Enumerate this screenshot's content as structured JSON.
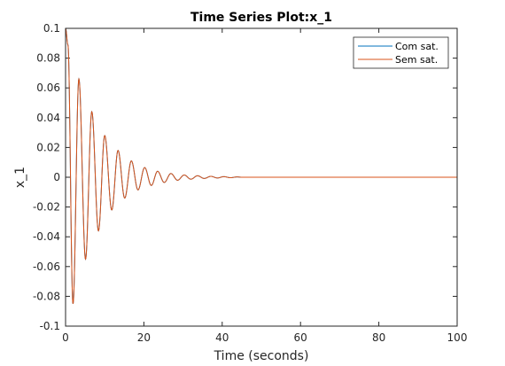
{
  "chart_data": {
    "type": "line",
    "title": "Time Series Plot:x_1",
    "xlabel": "Time (seconds)",
    "ylabel": "x_1",
    "xlim": [
      0,
      100
    ],
    "ylim": [
      -0.1,
      0.1
    ],
    "xticks": [
      0,
      20,
      40,
      60,
      80,
      100
    ],
    "yticks": [
      -0.1,
      -0.08,
      -0.06,
      -0.04,
      -0.02,
      0,
      0.02,
      0.04,
      0.06,
      0.08,
      0.1
    ],
    "grid": false,
    "legend_position": "top-right",
    "series": [
      {
        "name": "Com sat.",
        "color": "#0072BD",
        "signal": {
          "form": "damped-oscillation",
          "initial_value": 0.1,
          "peak_times": [
            0.6,
            3.4,
            6.7,
            10.0,
            13.4,
            16.8,
            20.2,
            23.5,
            26.9,
            30.3,
            33.7,
            37.1,
            40.4,
            43.8
          ],
          "peak_values": [
            0.089,
            0.066,
            0.044,
            0.028,
            0.018,
            0.011,
            0.0065,
            0.004,
            0.0025,
            0.0015,
            0.001,
            0.0006,
            0.0004,
            0.0002
          ],
          "trough_times": [
            1.9,
            5.1,
            8.4,
            11.8,
            15.1,
            18.5,
            21.9,
            25.2,
            28.6,
            32.0,
            35.4,
            38.8,
            42.1
          ],
          "trough_values": [
            -0.085,
            -0.055,
            -0.036,
            -0.022,
            -0.014,
            -0.0085,
            -0.0055,
            -0.0035,
            -0.002,
            -0.0013,
            -0.0008,
            -0.0005,
            -0.0003
          ],
          "settles_to": 0,
          "settle_time": 45
        }
      },
      {
        "name": "Sem sat.",
        "color": "#D95319",
        "signal": {
          "form": "damped-oscillation",
          "initial_value": 0.1,
          "peak_times": [
            0.6,
            3.4,
            6.7,
            10.0,
            13.4,
            16.8,
            20.2,
            23.5,
            26.9,
            30.3,
            33.7,
            37.1,
            40.4,
            43.8
          ],
          "peak_values": [
            0.089,
            0.066,
            0.044,
            0.028,
            0.018,
            0.011,
            0.0065,
            0.004,
            0.0025,
            0.0015,
            0.001,
            0.0006,
            0.0004,
            0.0002
          ],
          "trough_times": [
            1.9,
            5.1,
            8.4,
            11.8,
            15.1,
            18.5,
            21.9,
            25.2,
            28.6,
            32.0,
            35.4,
            38.8,
            42.1
          ],
          "trough_values": [
            -0.085,
            -0.055,
            -0.036,
            -0.022,
            -0.014,
            -0.0085,
            -0.0055,
            -0.0035,
            -0.002,
            -0.0013,
            -0.0008,
            -0.0005,
            -0.0003
          ],
          "settles_to": 0,
          "settle_time": 45
        }
      }
    ]
  }
}
